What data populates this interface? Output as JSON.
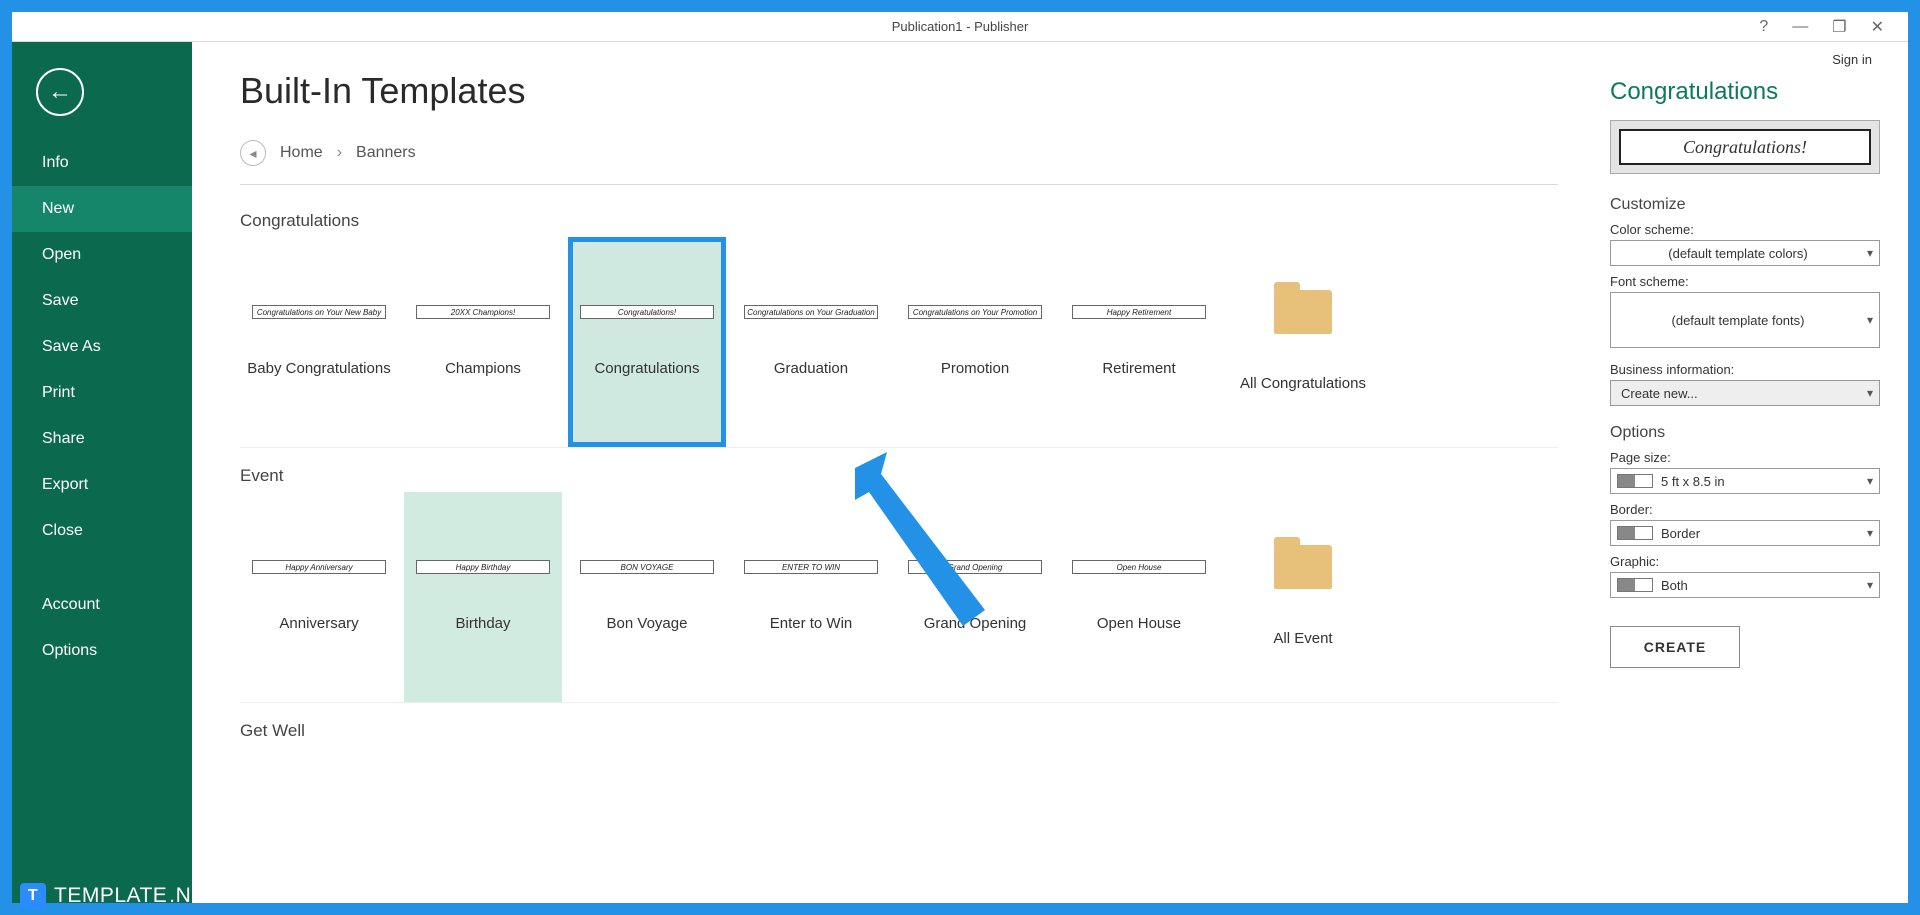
{
  "window": {
    "title": "Publication1 - Publisher",
    "sign_in": "Sign in",
    "help_icon": "?",
    "minimize": "—",
    "restore": "❐",
    "close": "✕"
  },
  "sidebar": {
    "items": [
      {
        "label": "Info",
        "selected": false
      },
      {
        "label": "New",
        "selected": true
      },
      {
        "label": "Open",
        "selected": false
      },
      {
        "label": "Save",
        "selected": false
      },
      {
        "label": "Save As",
        "selected": false
      },
      {
        "label": "Print",
        "selected": false
      },
      {
        "label": "Share",
        "selected": false
      },
      {
        "label": "Export",
        "selected": false
      },
      {
        "label": "Close",
        "selected": false
      }
    ],
    "footer": [
      {
        "label": "Account"
      },
      {
        "label": "Options"
      }
    ]
  },
  "content": {
    "title": "Built-In Templates",
    "breadcrumb": {
      "home": "Home",
      "sep": "›",
      "current": "Banners"
    },
    "sections": [
      {
        "label": "Congratulations",
        "items": [
          {
            "caption": "Baby Congratulations",
            "thumb_text": "Congratulations on Your New Baby"
          },
          {
            "caption": "Champions",
            "thumb_text": "20XX Champions!"
          },
          {
            "caption": "Congratulations",
            "thumb_text": "Congratulations!",
            "selected": true
          },
          {
            "caption": "Graduation",
            "thumb_text": "Congratulations on Your Graduation"
          },
          {
            "caption": "Promotion",
            "thumb_text": "Congratulations on Your Promotion"
          },
          {
            "caption": "Retirement",
            "thumb_text": "Happy Retirement"
          }
        ],
        "all": "All Congratulations"
      },
      {
        "label": "Event",
        "items": [
          {
            "caption": "Anniversary",
            "thumb_text": "Happy Anniversary"
          },
          {
            "caption": "Birthday",
            "thumb_text": "Happy Birthday",
            "hover": true
          },
          {
            "caption": "Bon Voyage",
            "thumb_text": "BON VOYAGE"
          },
          {
            "caption": "Enter to Win",
            "thumb_text": "ENTER TO WIN"
          },
          {
            "caption": "Grand Opening",
            "thumb_text": "Grand Opening"
          },
          {
            "caption": "Open House",
            "thumb_text": "Open House"
          }
        ],
        "all": "All Event"
      },
      {
        "label": "Get Well",
        "items": [],
        "all": ""
      }
    ]
  },
  "right": {
    "title": "Congratulations",
    "preview_text": "Congratulations!",
    "customize_h": "Customize",
    "color_label": "Color scheme:",
    "color_value": "(default template colors)",
    "font_label": "Font scheme:",
    "font_value": "(default template fonts)",
    "biz_label": "Business information:",
    "biz_value": "Create new...",
    "options_h": "Options",
    "page_label": "Page size:",
    "page_value": "5 ft x 8.5 in",
    "border_label": "Border:",
    "border_value": "Border",
    "graphic_label": "Graphic:",
    "graphic_value": "Both",
    "create": "CREATE"
  },
  "watermark": {
    "brand": "TEMPLATE",
    "suffix": ".NET",
    "badge": "T"
  },
  "colors": {
    "frame": "#2392e6",
    "sidebar_bg": "#0b6a4e",
    "sidebar_sel": "#15866a",
    "accent_green": "#0b7a5b",
    "folder": "#e7c07a",
    "card_sel_bg": "#cfe9e1",
    "card_hover_bg": "#d2ebe1"
  }
}
